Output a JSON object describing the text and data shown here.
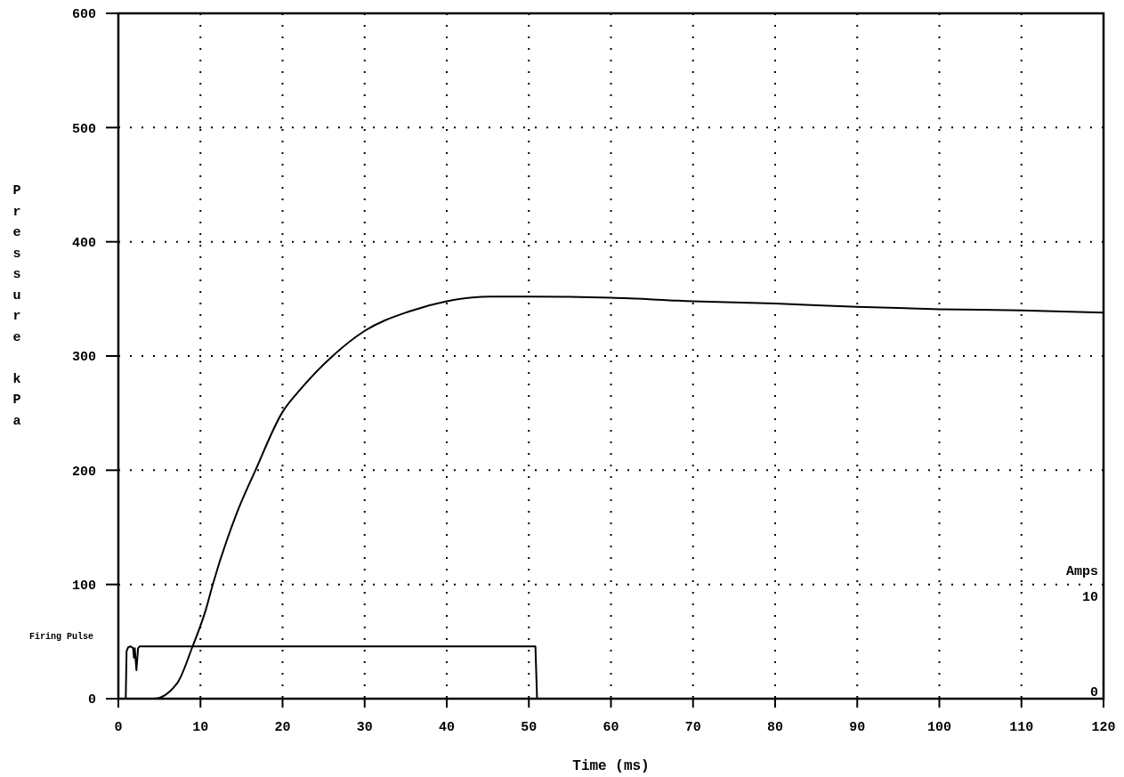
{
  "chart_data": {
    "type": "line",
    "xlabel": "Time (ms)",
    "ylabel": "Pressure kPa",
    "y2label": "Amps",
    "xlim": [
      0,
      120
    ],
    "xticks": [
      0,
      10,
      20,
      30,
      40,
      50,
      60,
      70,
      80,
      90,
      100,
      110,
      120
    ],
    "ylim": [
      0,
      600
    ],
    "yticks": [
      0,
      100,
      200,
      300,
      400,
      500,
      600
    ],
    "y2lim": [
      0,
      72
    ],
    "y2ticks": [
      0,
      10
    ],
    "grid": true,
    "line_style": "solid",
    "marker": "none",
    "series": [
      {
        "color": "#000000",
        "x": [
          0,
          4.3,
          7.2,
          9,
          10.7,
          11.5,
          14.4,
          16.7,
          20,
          22.2,
          26.1,
          30,
          35.4,
          40,
          45.4,
          50,
          60,
          70,
          80,
          90,
          100,
          110,
          120
        ],
        "values": [
          0,
          0,
          14,
          45,
          79,
          100,
          162,
          200,
          251,
          271,
          300,
          322,
          339,
          348,
          352,
          352,
          351,
          348,
          346,
          343,
          341,
          340,
          338
        ]
      },
      {
        "name": "Firing Pulse",
        "axis": "y2",
        "color": "#000000",
        "x": [
          0,
          0.9,
          1.0,
          1.2,
          1.5,
          1.8,
          1.9,
          2.0,
          2.2,
          2.4,
          2.6,
          50.8,
          51.0,
          120
        ],
        "values": [
          0,
          0,
          5.0,
          5.4,
          5.5,
          5.3,
          4.3,
          5.3,
          3.0,
          5.3,
          5.5,
          5.5,
          0,
          0
        ]
      }
    ]
  }
}
